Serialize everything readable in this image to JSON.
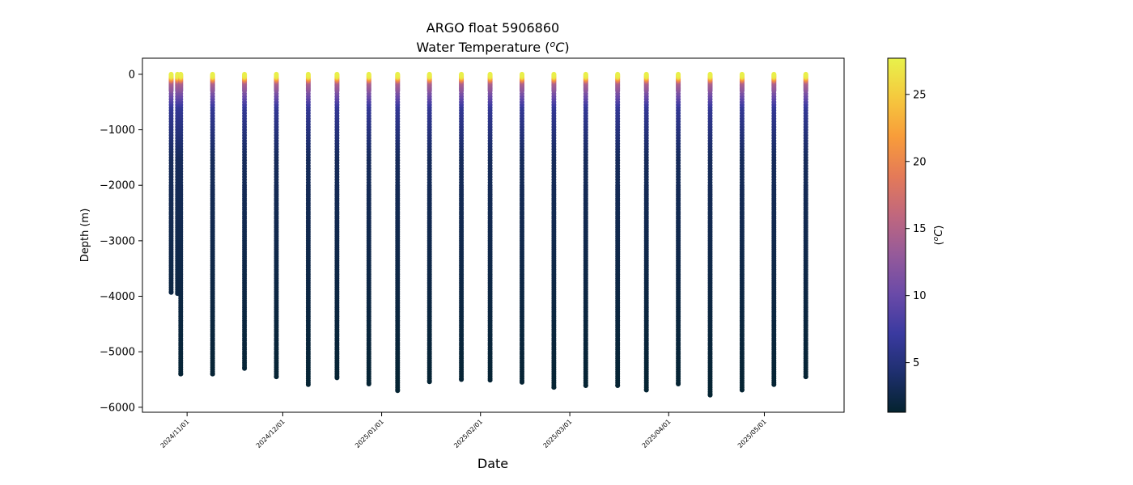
{
  "chart_data": {
    "type": "scatter",
    "title": "ARGO float 5906860",
    "subtitle_main": "Water Temperature (",
    "subtitle_sup": "o",
    "subtitle_unit": "C",
    "subtitle_close": ")",
    "xlabel": "Date",
    "ylabel": "Depth (m)",
    "colorbar_label_open": "(",
    "colorbar_label_sup": "o",
    "colorbar_label_unit": "C",
    "colorbar_label_close": ")",
    "colorscale": "thermal",
    "xlim": [
      "2024-10-18",
      "2025-05-26"
    ],
    "ylim": [
      -6090,
      290
    ],
    "clim": [
      1.3,
      27.7
    ],
    "y_ticks": [
      0,
      -1000,
      -2000,
      -3000,
      -4000,
      -5000,
      -6000
    ],
    "y_tick_labels": [
      "0",
      "−1000",
      "−2000",
      "−3000",
      "−4000",
      "−5000",
      "−6000"
    ],
    "x_ticks": [
      "2024-11-01",
      "2024-12-01",
      "2025-01-01",
      "2025-02-01",
      "2025-03-01",
      "2025-04-01",
      "2025-05-01"
    ],
    "x_tick_labels": [
      "2024/11/01",
      "2024/12/01",
      "2025/01/01",
      "2025/02/01",
      "2025/03/01",
      "2025/04/01",
      "2025/05/01"
    ],
    "colorbar_ticks": [
      5,
      10,
      15,
      20,
      25
    ],
    "colorbar_tick_labels": [
      "5",
      "10",
      "15",
      "20",
      "25"
    ],
    "colorbar_colors": [
      "#04232f",
      "#1e2f6e",
      "#3a3aa0",
      "#6a4aa8",
      "#955a9a",
      "#c0677e",
      "#e47a58",
      "#f89c3a",
      "#f5c93e",
      "#e8f24b"
    ],
    "profiles": [
      {
        "date": "2024-10-27",
        "max_depth": -3930
      },
      {
        "date": "2024-10-29",
        "max_depth": -3950
      },
      {
        "date": "2024-10-30",
        "max_depth": -5400
      },
      {
        "date": "2024-11-09",
        "max_depth": -5400
      },
      {
        "date": "2024-11-19",
        "max_depth": -5300
      },
      {
        "date": "2024-11-29",
        "max_depth": -5450
      },
      {
        "date": "2024-12-09",
        "max_depth": -5590
      },
      {
        "date": "2024-12-18",
        "max_depth": -5470
      },
      {
        "date": "2024-12-28",
        "max_depth": -5580
      },
      {
        "date": "2025-01-06",
        "max_depth": -5700
      },
      {
        "date": "2025-01-16",
        "max_depth": -5540
      },
      {
        "date": "2025-01-26",
        "max_depth": -5500
      },
      {
        "date": "2025-02-04",
        "max_depth": -5510
      },
      {
        "date": "2025-02-14",
        "max_depth": -5550
      },
      {
        "date": "2025-02-24",
        "max_depth": -5640
      },
      {
        "date": "2025-03-06",
        "max_depth": -5610
      },
      {
        "date": "2025-03-16",
        "max_depth": -5610
      },
      {
        "date": "2025-03-25",
        "max_depth": -5690
      },
      {
        "date": "2025-04-04",
        "max_depth": -5580
      },
      {
        "date": "2025-04-14",
        "max_depth": -5780
      },
      {
        "date": "2025-04-24",
        "max_depth": -5690
      },
      {
        "date": "2025-05-04",
        "max_depth": -5590
      },
      {
        "date": "2025-05-14",
        "max_depth": -5450
      }
    ]
  }
}
